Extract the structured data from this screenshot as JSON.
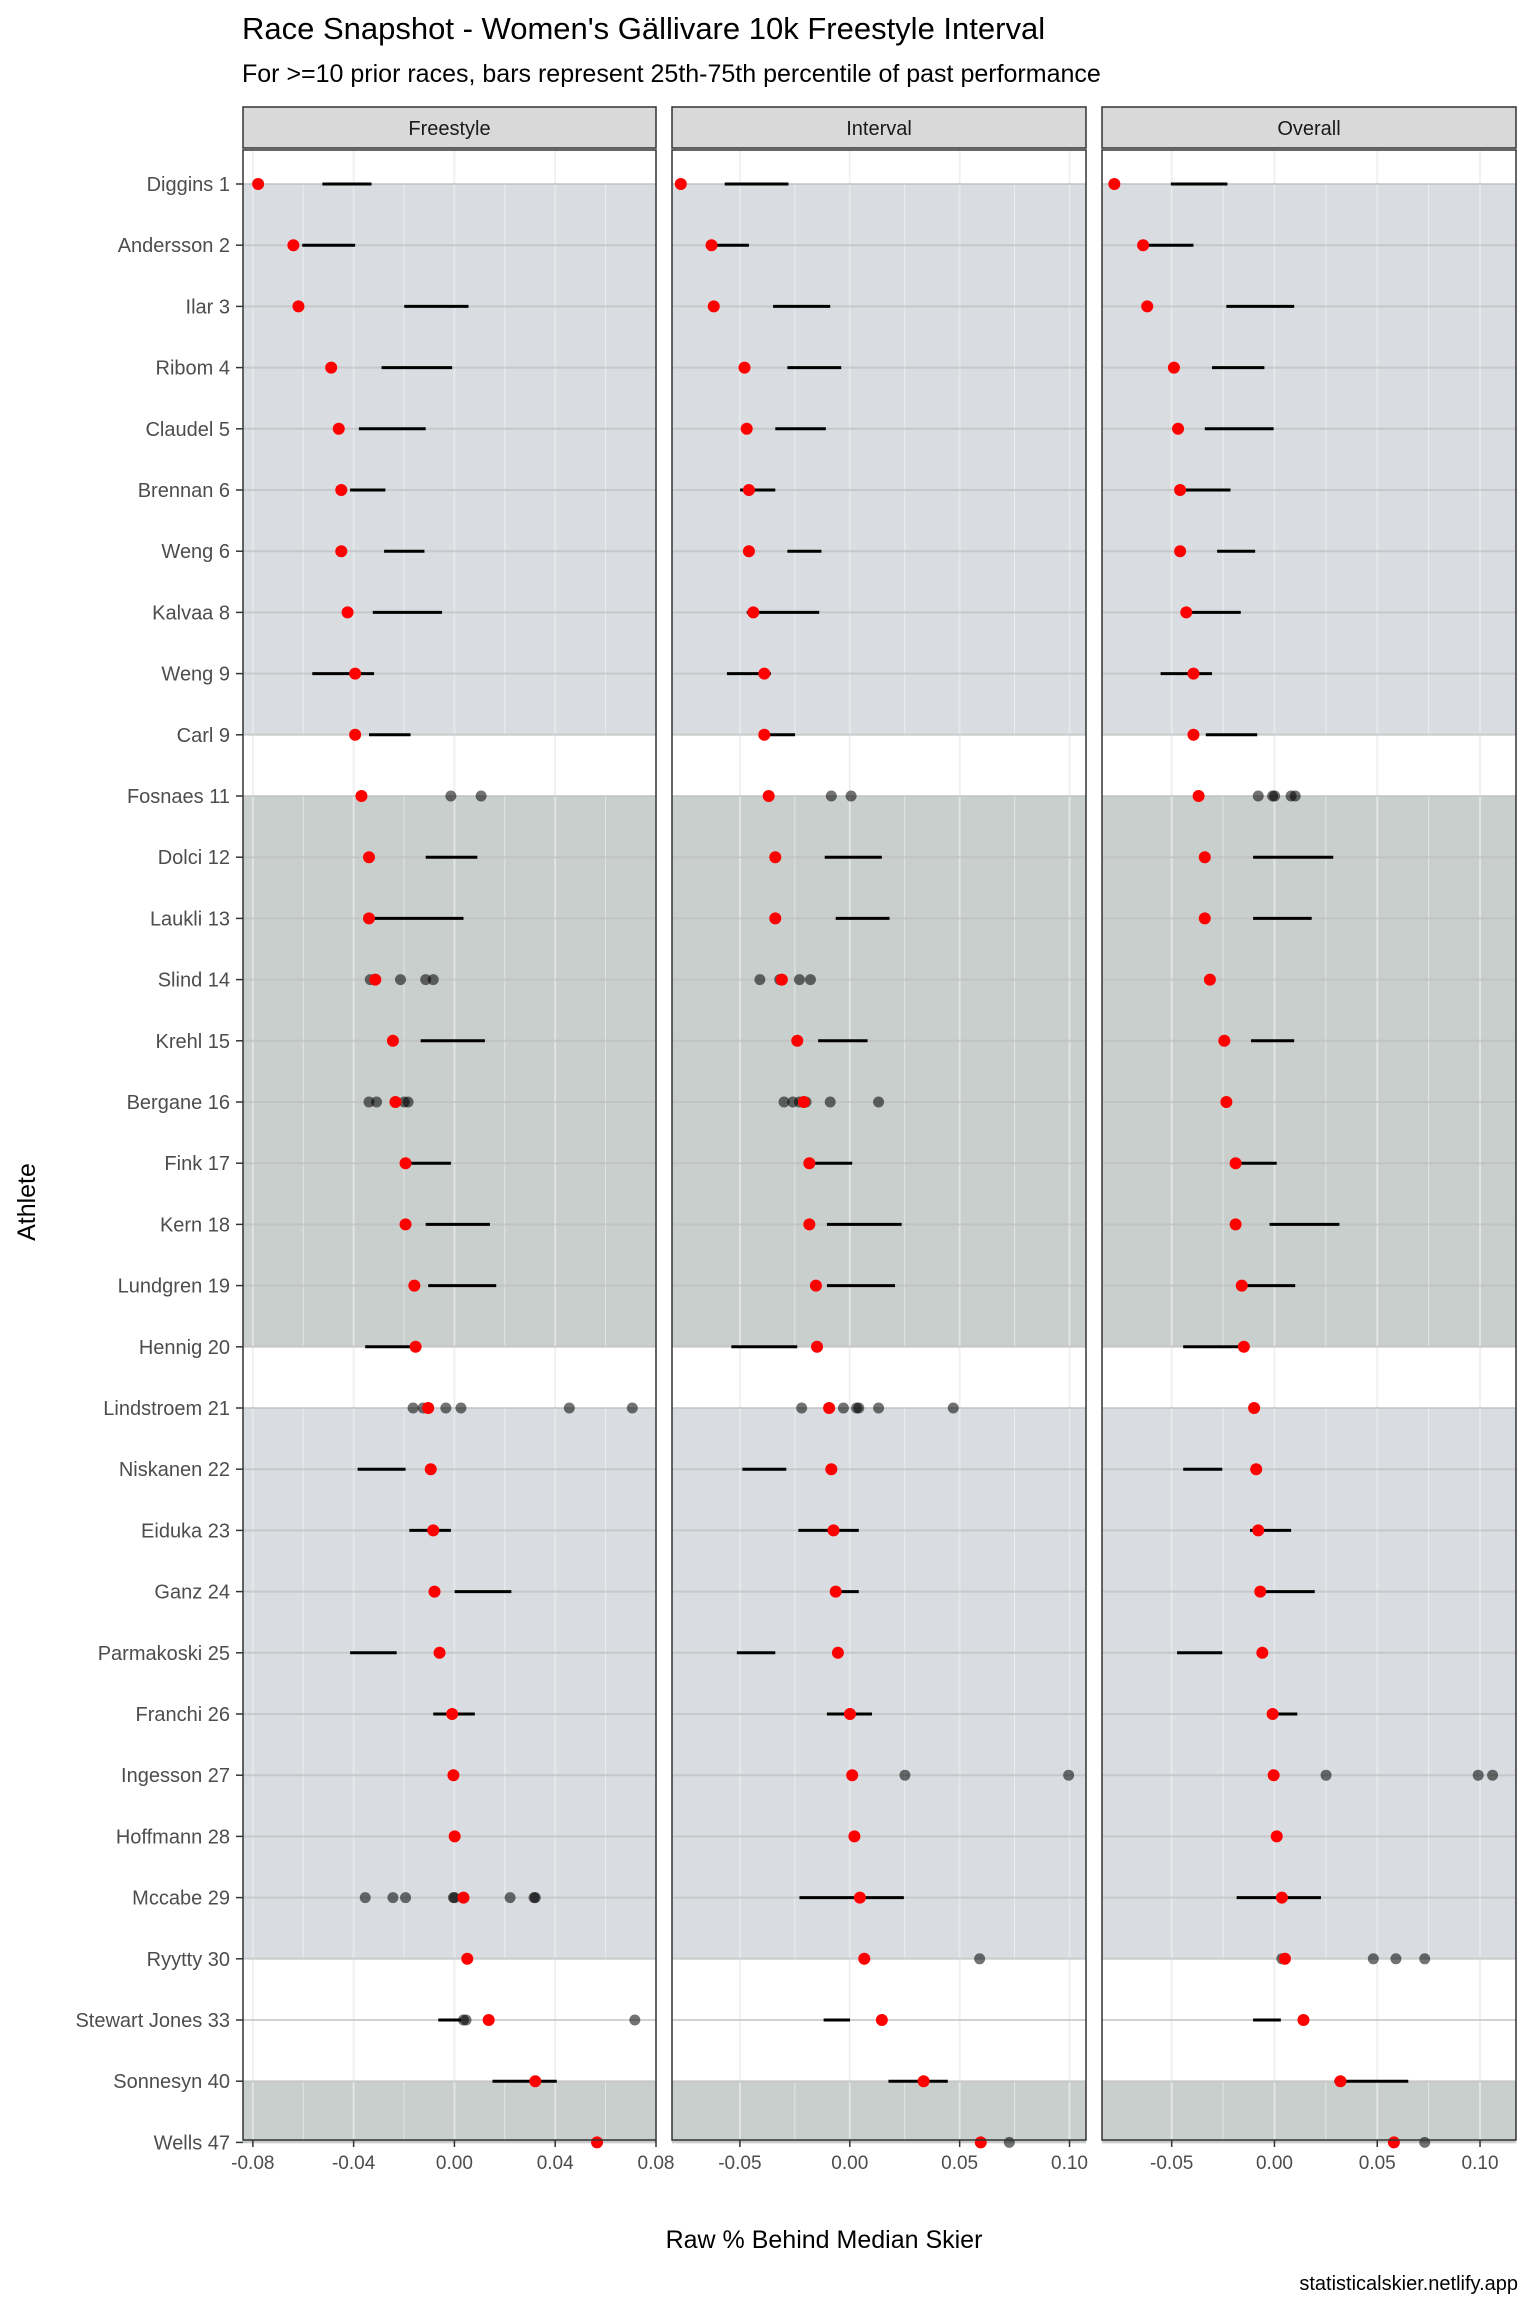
{
  "chart_data": {
    "type": "dot-range",
    "title": "Race Snapshot -  Women's Gällivare 10k Freestyle Interval",
    "subtitle": "For >=10 prior races, bars represent 25th-75th percentile of past performance",
    "xlabel": "Raw % Behind Median Skier",
    "ylabel": "Athlete",
    "caption": "statisticalskier.netlify.app",
    "athletes": [
      "Diggins 1",
      "Andersson 2",
      "Ilar 3",
      "Ribom 4",
      "Claudel 5",
      "Brennan 6",
      "Weng 6",
      "Kalvaa 8",
      "Weng 9",
      "Carl 9",
      "Fosnaes 11",
      "Dolci 12",
      "Laukli 13",
      "Slind 14",
      "Krehl 15",
      "Bergane 16",
      "Fink 17",
      "Kern 18",
      "Lundgren 19",
      "Hennig 20",
      "Lindstroem 21",
      "Niskanen 22",
      "Eiduka 23",
      "Ganz 24",
      "Parmakoski 25",
      "Franchi 26",
      "Ingesson 27",
      "Hoffmann 28",
      "Mccabe 29",
      "Ryytty 30",
      "Stewart Jones 33",
      "Sonnesyn 40",
      "Wells 47"
    ],
    "bands": [
      {
        "from": 0,
        "to": 9,
        "color": "#d9dce1"
      },
      {
        "from": 10,
        "to": 19,
        "color": "#c9cfcd"
      },
      {
        "from": 20,
        "to": 29,
        "color": "#d9dce1"
      },
      {
        "from": 31,
        "to": 32,
        "color": "#c9cfcd"
      }
    ],
    "colors": {
      "current": "#ff0000",
      "past": "#000000",
      "panel_bg": "#ffffff",
      "strip_bg": "#d9d9d9"
    },
    "panels": [
      {
        "name": "Freestyle",
        "xlim": [
          -0.0839,
          0.08
        ],
        "ticks": [
          -0.08,
          -0.04,
          0.0,
          0.04,
          0.08
        ],
        "tick_labels": [
          "-0.08",
          "-0.04",
          "0.00",
          "0.04",
          "0.08"
        ],
        "current": [
          -0.0779,
          -0.0639,
          -0.0619,
          -0.0489,
          -0.0459,
          -0.0449,
          -0.0449,
          -0.0424,
          -0.0394,
          -0.0394,
          -0.0369,
          -0.0339,
          -0.0339,
          -0.0314,
          -0.0244,
          -0.0234,
          -0.0194,
          -0.0194,
          -0.0159,
          -0.0154,
          -0.0104,
          -0.0094,
          -0.0084,
          -0.0079,
          -0.0059,
          -0.0009,
          -0.0004,
          0.0001,
          0.0036,
          0.0051,
          0.0136,
          0.0321,
          0.0566
        ],
        "range": [
          [
            -0.0524,
            -0.0329
          ],
          [
            -0.0604,
            -0.0394
          ],
          [
            -0.0199,
            0.0056
          ],
          [
            -0.0289,
            -0.0009
          ],
          [
            -0.0379,
            -0.0114
          ],
          [
            -0.0414,
            -0.0274
          ],
          [
            -0.0279,
            -0.0119
          ],
          [
            -0.0324,
            -0.0049
          ],
          [
            -0.0564,
            -0.0319
          ],
          [
            -0.0339,
            -0.0174
          ],
          null,
          [
            -0.0114,
            0.0091
          ],
          [
            -0.0339,
            0.0036
          ],
          null,
          [
            -0.0134,
            0.0121
          ],
          null,
          [
            -0.0189,
            -0.0014
          ],
          [
            -0.0114,
            0.0141
          ],
          [
            -0.0104,
            0.0166
          ],
          [
            -0.0354,
            -0.0149
          ],
          null,
          [
            -0.0384,
            -0.0194
          ],
          [
            -0.0179,
            -0.0014
          ],
          [
            0.0001,
            0.0226
          ],
          [
            -0.0414,
            -0.0229
          ],
          [
            -0.0084,
            0.0081
          ],
          null,
          null,
          null,
          null,
          [
            -0.0064,
            0.0026
          ],
          [
            0.0151,
            0.0406
          ],
          null
        ],
        "past": [
          [],
          [],
          [],
          [],
          [],
          [],
          [],
          [],
          [],
          [],
          [
            -0.0014,
            0.0106
          ],
          [],
          [],
          [
            -0.0334,
            -0.0314,
            -0.0214,
            -0.0114,
            -0.0084
          ],
          [],
          [
            -0.0339,
            -0.0309,
            -0.0199,
            -0.0184
          ],
          [],
          [],
          [],
          [],
          [
            -0.0164,
            -0.0124,
            -0.0034,
            0.0026,
            0.0456,
            0.0706
          ],
          [],
          [],
          [],
          [],
          [],
          [],
          [],
          [
            -0.0354,
            -0.0244,
            -0.0194,
            -0.0004,
            0.0001,
            0.0221,
            0.0316,
            0.0321
          ],
          [],
          [
            0.0036,
            0.0046,
            0.0716
          ],
          [],
          [],
          []
        ]
      },
      {
        "name": "Interval",
        "xlim": [
          -0.0809,
          0.1075
        ],
        "ticks": [
          -0.05,
          0.0,
          0.05,
          0.1
        ],
        "tick_labels": [
          "-0.05",
          "0.00",
          "0.05",
          "0.10"
        ],
        "current": [
          -0.0769,
          -0.0629,
          -0.0619,
          -0.0479,
          -0.0469,
          -0.0459,
          -0.0459,
          -0.0439,
          -0.0389,
          -0.0389,
          -0.0369,
          -0.0339,
          -0.0339,
          -0.0309,
          -0.0239,
          -0.0209,
          -0.0184,
          -0.0184,
          -0.0154,
          -0.0149,
          -0.0094,
          -0.0084,
          -0.0074,
          -0.0064,
          -0.0054,
          0.0001,
          0.0011,
          0.0021,
          0.0046,
          0.0066,
          0.0146,
          0.0336,
          0.0596
        ],
        "range": [
          [
            -0.0569,
            -0.0279
          ],
          [
            -0.0639,
            -0.0459
          ],
          [
            -0.0349,
            -0.0089
          ],
          [
            -0.0284,
            -0.0039
          ],
          [
            -0.0339,
            -0.0109
          ],
          [
            -0.0499,
            -0.0339
          ],
          [
            -0.0284,
            -0.0129
          ],
          [
            -0.0469,
            -0.0139
          ],
          [
            -0.0559,
            -0.0359
          ],
          [
            -0.0409,
            -0.0249
          ],
          null,
          [
            -0.0114,
            0.0146
          ],
          [
            -0.0064,
            0.0181
          ],
          null,
          [
            -0.0144,
            0.0081
          ],
          null,
          [
            -0.0184,
            0.0011
          ],
          [
            -0.0104,
            0.0236
          ],
          [
            -0.0104,
            0.0206
          ],
          [
            -0.0539,
            -0.0239
          ],
          null,
          [
            -0.0489,
            -0.0289
          ],
          [
            -0.0234,
            0.0041
          ],
          [
            -0.0084,
            0.0041
          ],
          [
            -0.0514,
            -0.0339
          ],
          [
            -0.0104,
            0.0101
          ],
          null,
          null,
          [
            -0.0229,
            0.0246
          ],
          null,
          [
            -0.0119,
            0.0001
          ],
          [
            0.0176,
            0.0446
          ],
          null
        ],
        "past": [
          [],
          [],
          [],
          [],
          [],
          [],
          [],
          [],
          [],
          [],
          [
            -0.0084,
            0.0006
          ],
          [],
          [],
          [
            -0.0409,
            -0.0319,
            -0.0229,
            -0.0179
          ],
          [],
          [
            -0.0299,
            -0.0259,
            -0.0229,
            -0.0199,
            -0.0089,
            0.0131
          ],
          [],
          [],
          [],
          [],
          [
            -0.0219,
            -0.0029,
            0.0031,
            0.0041,
            0.0131,
            0.0471
          ],
          [],
          [],
          [],
          [],
          [],
          [
            0.0251,
            0.0996
          ],
          [],
          [],
          [
            0.0591
          ],
          [],
          [],
          [
            0.0726
          ]
        ]
      },
      {
        "name": "Overall",
        "xlim": [
          -0.0839,
          0.1175
        ],
        "ticks": [
          -0.05,
          0.0,
          0.05,
          0.1
        ],
        "tick_labels": [
          "-0.05",
          "0.00",
          "0.05",
          "0.10"
        ],
        "current": [
          -0.0779,
          -0.0639,
          -0.0619,
          -0.0489,
          -0.0469,
          -0.0459,
          -0.0459,
          -0.0429,
          -0.0394,
          -0.0394,
          -0.0369,
          -0.0339,
          -0.0339,
          -0.0314,
          -0.0244,
          -0.0234,
          -0.0189,
          -0.0189,
          -0.0159,
          -0.0149,
          -0.0099,
          -0.0089,
          -0.0079,
          -0.0069,
          -0.0059,
          -0.0009,
          -0.0004,
          0.0011,
          0.0036,
          0.0051,
          0.0141,
          0.0321,
          0.0581
        ],
        "range": [
          [
            -0.0504,
            -0.0229
          ],
          [
            -0.0619,
            -0.0394
          ],
          [
            -0.0234,
            0.0096
          ],
          [
            -0.0304,
            -0.0049
          ],
          [
            -0.0339,
            -0.0004
          ],
          [
            -0.0444,
            -0.0214
          ],
          [
            -0.0279,
            -0.0094
          ],
          [
            -0.0419,
            -0.0164
          ],
          [
            -0.0554,
            -0.0304
          ],
          [
            -0.0334,
            -0.0084
          ],
          null,
          [
            -0.0104,
            0.0286
          ],
          [
            -0.0104,
            0.0181
          ],
          null,
          [
            -0.0114,
            0.0096
          ],
          null,
          [
            -0.0179,
            0.0011
          ],
          [
            -0.0024,
            0.0316
          ],
          [
            -0.0159,
            0.0101
          ],
          [
            -0.0444,
            -0.0174
          ],
          null,
          [
            -0.0444,
            -0.0254
          ],
          [
            -0.0119,
            0.0081
          ],
          [
            -0.0069,
            0.0196
          ],
          [
            -0.0474,
            -0.0254
          ],
          [
            -0.0009,
            0.0111
          ],
          null,
          null,
          [
            -0.0184,
            0.0226
          ],
          null,
          [
            -0.0104,
            0.0031
          ],
          [
            0.0291,
            0.0651
          ],
          null
        ],
        "past": [
          [],
          [],
          [],
          [],
          [],
          [],
          [],
          [],
          [],
          [],
          [
            -0.0079,
            -0.0009,
            0.0001,
            0.0081,
            0.0101
          ],
          [],
          [],
          [],
          [],
          [],
          [],
          [],
          [],
          [],
          [],
          [],
          [],
          [],
          [],
          [],
          [
            0.0251,
            0.0991,
            0.1061
          ],
          [],
          [],
          [
            0.0036,
            0.0051,
            0.0481,
            0.0591,
            0.0731
          ],
          [],
          [],
          [
            0.0731
          ]
        ]
      }
    ]
  }
}
